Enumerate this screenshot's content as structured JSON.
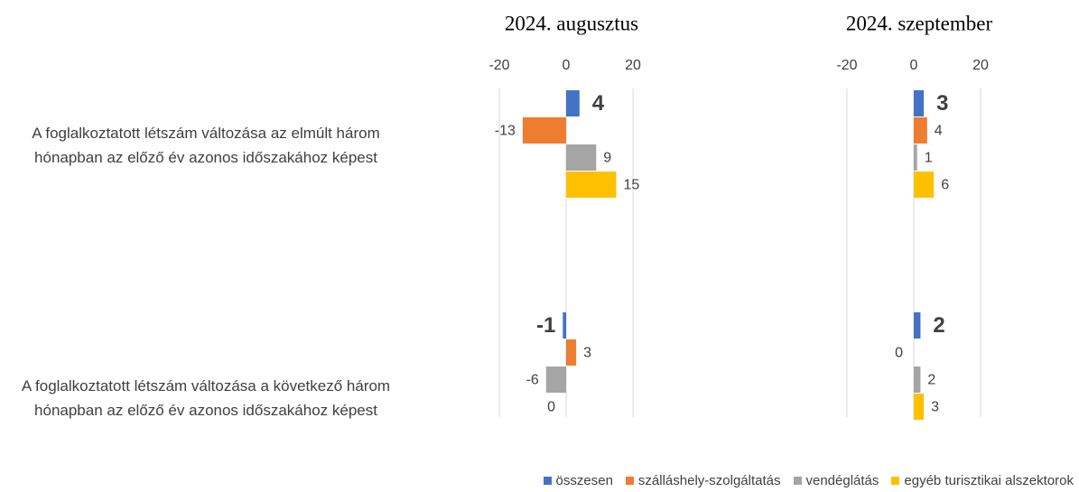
{
  "chart_data": {
    "type": "bar",
    "orientation": "horizontal",
    "categories": [
      "A foglalkoztatott létszám változása az elmúlt három hónapban az előző év azonos időszakához képest",
      "A foglalkoztatott létszám változása a következő három hónapban az előző év azonos időszakához képest"
    ],
    "xlim": [
      -20,
      20
    ],
    "xticks": [
      -20,
      0,
      20
    ],
    "grid": true,
    "series": [
      {
        "name": "összesen",
        "color": "#4472c4"
      },
      {
        "name": "szálláshely-szolgáltatás",
        "color": "#ed7d31"
      },
      {
        "name": "vendéglátás",
        "color": "#a5a5a5"
      },
      {
        "name": "egyéb turisztikai alszektorok",
        "color": "#ffc000"
      }
    ],
    "panels": [
      {
        "title": "2024. augusztus",
        "series": [
          {
            "values": [
              4,
              -1
            ]
          },
          {
            "values": [
              -13,
              3
            ]
          },
          {
            "values": [
              9,
              -6
            ]
          },
          {
            "values": [
              15,
              0
            ]
          }
        ]
      },
      {
        "title": "2024. szeptember",
        "series": [
          {
            "values": [
              3,
              2
            ]
          },
          {
            "values": [
              4,
              0
            ]
          },
          {
            "values": [
              1,
              2
            ]
          },
          {
            "values": [
              6,
              3
            ]
          }
        ]
      }
    ]
  }
}
